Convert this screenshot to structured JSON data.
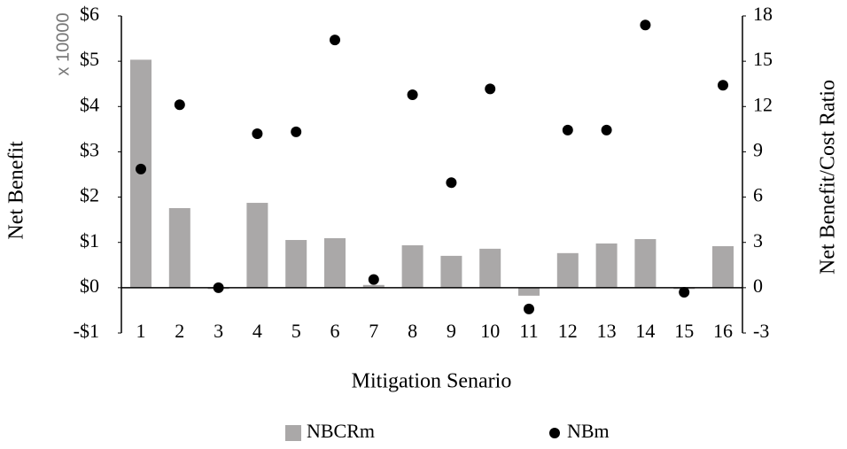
{
  "chart_data": {
    "type": "bar",
    "y_unit_label": "x 10000",
    "xlabel": "Mitigation Senario",
    "ylabel": "Net Benefit",
    "y2label": "Net Benefit/Cost Ratio",
    "categories": [
      "1",
      "2",
      "3",
      "4",
      "5",
      "6",
      "7",
      "8",
      "9",
      "10",
      "11",
      "12",
      "13",
      "14",
      "15",
      "16"
    ],
    "series": [
      {
        "name": "NBCRm",
        "type": "bar",
        "axis": "y2",
        "color": "#aaa8a8",
        "values": [
          15.1,
          5.27,
          0,
          5.62,
          3.16,
          3.28,
          0.18,
          2.81,
          2.11,
          2.58,
          -0.53,
          2.29,
          2.93,
          3.22,
          0,
          2.75
        ]
      },
      {
        "name": "NBm",
        "type": "scatter",
        "axis": "y",
        "color": "#000000",
        "values": [
          2.62,
          4.04,
          0,
          3.4,
          3.44,
          5.47,
          0.18,
          4.26,
          2.32,
          4.39,
          -0.47,
          3.48,
          3.48,
          5.8,
          -0.1,
          4.47
        ]
      }
    ],
    "ylim": [
      -1,
      6
    ],
    "yticks": [
      {
        "value": -1,
        "label": "-$1"
      },
      {
        "value": 0,
        "label": "$0"
      },
      {
        "value": 1,
        "label": "$1"
      },
      {
        "value": 2,
        "label": "$2"
      },
      {
        "value": 3,
        "label": "$3"
      },
      {
        "value": 4,
        "label": "$4"
      },
      {
        "value": 5,
        "label": "$5"
      },
      {
        "value": 6,
        "label": "$6"
      }
    ],
    "y2lim": [
      -3,
      18
    ],
    "y2ticks": [
      -3,
      0,
      3,
      6,
      9,
      12,
      15,
      18
    ],
    "legend": "bottom"
  }
}
